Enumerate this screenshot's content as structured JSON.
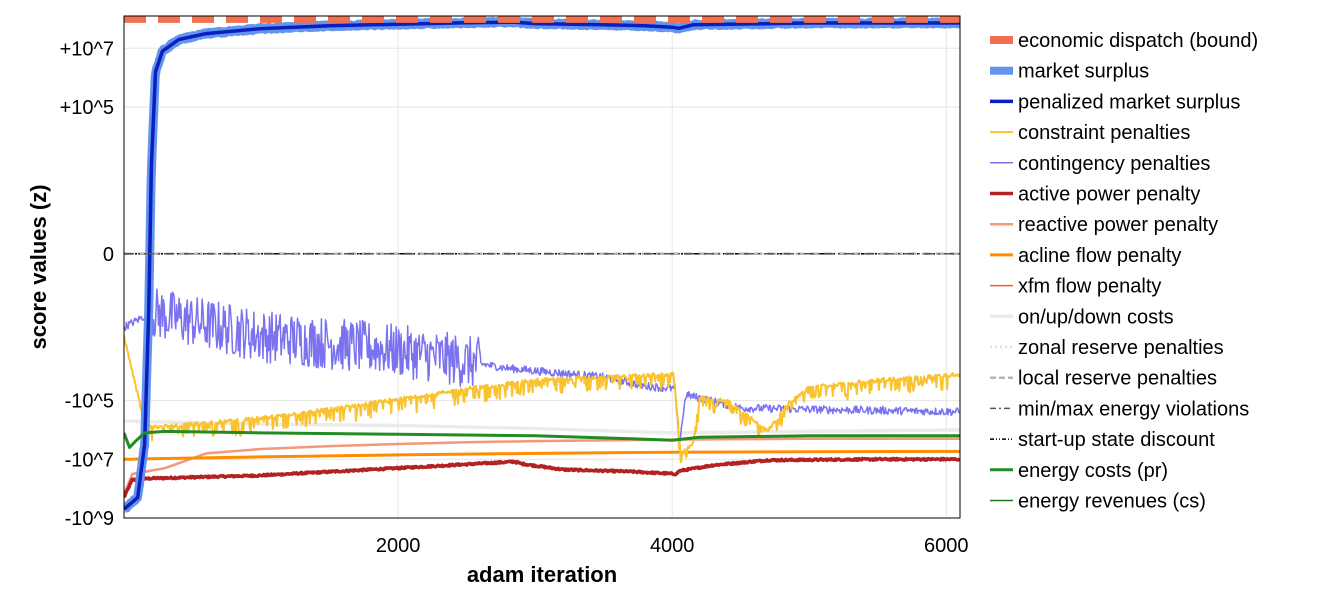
{
  "chart_data": {
    "type": "line",
    "title": "",
    "xlabel": "adam iteration",
    "ylabel": "score values (z)",
    "xlim": [
      0,
      6100
    ],
    "ylim_symlog": [
      -9,
      8.1
    ],
    "y_scale": "symlog",
    "grid": true,
    "legend_placement": "right, outside",
    "x_ticks": [
      {
        "value": 2000,
        "label": "2000"
      },
      {
        "value": 4000,
        "label": "4000"
      },
      {
        "value": 6000,
        "label": "6000"
      }
    ],
    "y_ticks": [
      {
        "value": 7,
        "label": "+10^7"
      },
      {
        "value": 5,
        "label": "+10^5"
      },
      {
        "value": 0,
        "label": "0"
      },
      {
        "value": -5,
        "label": "-10^5"
      },
      {
        "value": -7,
        "label": "-10^7"
      },
      {
        "value": -9,
        "label": "-10^9"
      }
    ],
    "series": [
      {
        "name": "economic dispatch (bound)",
        "color": "#f26f4f",
        "style": "dashed-thick",
        "width": 8,
        "points": [
          [
            0,
            8.0
          ],
          [
            6100,
            8.0
          ]
        ]
      },
      {
        "name": "market surplus",
        "color": "#6495ed",
        "style": "solid",
        "width": 9,
        "noise": 0.04,
        "points": [
          [
            0,
            -8.7
          ],
          [
            100,
            -8.3
          ],
          [
            150,
            -6.5
          ],
          [
            180,
            -2.0
          ],
          [
            200,
            3.0
          ],
          [
            230,
            6.2
          ],
          [
            280,
            6.9
          ],
          [
            400,
            7.3
          ],
          [
            600,
            7.5
          ],
          [
            1000,
            7.67
          ],
          [
            1500,
            7.77
          ],
          [
            2000,
            7.82
          ],
          [
            2500,
            7.87
          ],
          [
            2850,
            7.89
          ],
          [
            3000,
            7.84
          ],
          [
            3500,
            7.8
          ],
          [
            3800,
            7.77
          ],
          [
            4000,
            7.72
          ],
          [
            4050,
            7.68
          ],
          [
            4150,
            7.8
          ],
          [
            5000,
            7.86
          ],
          [
            6100,
            7.86
          ]
        ]
      },
      {
        "name": "penalized market surplus",
        "color": "#0a1fbf",
        "style": "solid",
        "width": 3.5,
        "points": [
          [
            0,
            -8.7
          ],
          [
            100,
            -8.3
          ],
          [
            150,
            -6.5
          ],
          [
            180,
            -2.0
          ],
          [
            200,
            3.0
          ],
          [
            230,
            6.2
          ],
          [
            280,
            6.9
          ],
          [
            400,
            7.3
          ],
          [
            600,
            7.5
          ],
          [
            1000,
            7.67
          ],
          [
            1500,
            7.77
          ],
          [
            2000,
            7.82
          ],
          [
            2500,
            7.87
          ],
          [
            2850,
            7.89
          ],
          [
            3000,
            7.84
          ],
          [
            3500,
            7.8
          ],
          [
            3800,
            7.77
          ],
          [
            4000,
            7.72
          ],
          [
            4050,
            7.68
          ],
          [
            4150,
            7.8
          ],
          [
            5000,
            7.86
          ],
          [
            6100,
            7.86
          ]
        ]
      },
      {
        "name": "constraint penalties",
        "color": "#f9c22e",
        "style": "solid",
        "width": 2,
        "noise": 0.06,
        "spikes": {
          "x0": 120,
          "x1": 6100,
          "every": 13,
          "depth": 0.5,
          "prob": 0.35
        },
        "points": [
          [
            0,
            -2.8
          ],
          [
            150,
            -5.8
          ],
          [
            250,
            -5.9
          ],
          [
            500,
            -5.8
          ],
          [
            1000,
            -5.6
          ],
          [
            1500,
            -5.3
          ],
          [
            2000,
            -4.95
          ],
          [
            2500,
            -4.6
          ],
          [
            3000,
            -4.3
          ],
          [
            3500,
            -4.2
          ],
          [
            4000,
            -4.1
          ],
          [
            4020,
            -4.1
          ],
          [
            4060,
            -6.8
          ],
          [
            4150,
            -6.5
          ],
          [
            4200,
            -4.9
          ],
          [
            4400,
            -5.0
          ],
          [
            4700,
            -6.0
          ],
          [
            4850,
            -5.1
          ],
          [
            5000,
            -4.55
          ],
          [
            5500,
            -4.3
          ],
          [
            6100,
            -4.1
          ]
        ]
      },
      {
        "name": "contingency penalties",
        "color": "#7b72f0",
        "style": "solid",
        "width": 1.5,
        "noise": 0.9,
        "noise_zone": [
          200,
          2600
        ],
        "points": [
          [
            0,
            -2.5
          ],
          [
            200,
            -2.0
          ],
          [
            1000,
            -2.8
          ],
          [
            2000,
            -3.3
          ],
          [
            2800,
            -3.9
          ],
          [
            3500,
            -4.2
          ],
          [
            3800,
            -4.5
          ],
          [
            4020,
            -4.6
          ],
          [
            4050,
            -6.5
          ],
          [
            4100,
            -4.8
          ],
          [
            4500,
            -5.25
          ],
          [
            5000,
            -5.3
          ],
          [
            6100,
            -5.38
          ]
        ]
      },
      {
        "name": "active power penalty",
        "color": "#b22222",
        "style": "solid",
        "width": 3.5,
        "noise": 0.03,
        "points": [
          [
            0,
            -8.3
          ],
          [
            60,
            -7.7
          ],
          [
            200,
            -7.65
          ],
          [
            1000,
            -7.55
          ],
          [
            2000,
            -7.3
          ],
          [
            2850,
            -7.08
          ],
          [
            2900,
            -7.15
          ],
          [
            3200,
            -7.35
          ],
          [
            3700,
            -7.42
          ],
          [
            4030,
            -7.5
          ],
          [
            4050,
            -7.4
          ],
          [
            4300,
            -7.2
          ],
          [
            4700,
            -7.03
          ],
          [
            5500,
            -7.0
          ],
          [
            6100,
            -7.0
          ]
        ]
      },
      {
        "name": "reactive power penalty",
        "color": "#f4977a",
        "style": "solid",
        "width": 2.5,
        "points": [
          [
            0,
            -8.2
          ],
          [
            60,
            -7.5
          ],
          [
            300,
            -7.3
          ],
          [
            600,
            -6.8
          ],
          [
            1000,
            -6.65
          ],
          [
            1500,
            -6.55
          ],
          [
            2000,
            -6.48
          ],
          [
            2500,
            -6.42
          ],
          [
            3000,
            -6.38
          ],
          [
            4000,
            -6.33
          ],
          [
            5000,
            -6.3
          ],
          [
            6100,
            -6.3
          ]
        ]
      },
      {
        "name": "acline flow penalty",
        "color": "#ff8c00",
        "style": "solid",
        "width": 3,
        "points": [
          [
            0,
            -7.0
          ],
          [
            200,
            -6.98
          ],
          [
            1000,
            -6.92
          ],
          [
            2000,
            -6.85
          ],
          [
            3000,
            -6.8
          ],
          [
            4000,
            -6.76
          ],
          [
            5000,
            -6.74
          ],
          [
            6100,
            -6.73
          ]
        ]
      },
      {
        "name": "xfm flow penalty",
        "color": "#ee5a24",
        "style": "solid",
        "width": 1.5,
        "points": [
          [
            0,
            -7.0
          ],
          [
            200,
            -6.98
          ],
          [
            1000,
            -6.92
          ],
          [
            2000,
            -6.85
          ],
          [
            3000,
            -6.8
          ],
          [
            4000,
            -6.76
          ],
          [
            5000,
            -6.74
          ],
          [
            6100,
            -6.73
          ]
        ]
      },
      {
        "name": "on/up/down costs",
        "color": "#ebebeb",
        "style": "solid",
        "width": 3.5,
        "points": [
          [
            0,
            -5.7
          ],
          [
            500,
            -5.75
          ],
          [
            1000,
            -5.8
          ],
          [
            2000,
            -5.85
          ],
          [
            3000,
            -5.95
          ],
          [
            4000,
            -6.1
          ],
          [
            5000,
            -6.05
          ],
          [
            6100,
            -6.0
          ]
        ]
      },
      {
        "name": "zonal reserve penalties",
        "color": "#e0e0e0",
        "style": "dotted",
        "width": 2.5,
        "points": [
          [
            0,
            0
          ],
          [
            6100,
            0
          ]
        ]
      },
      {
        "name": "local reserve penalties",
        "color": "#b5b5b5",
        "style": "dashed",
        "width": 2.5,
        "points": [
          [
            0,
            0
          ],
          [
            6100,
            0
          ]
        ]
      },
      {
        "name": "min/max energy violations",
        "color": "#555555",
        "style": "dashdot",
        "width": 1.5,
        "points": [
          [
            0,
            0
          ],
          [
            6100,
            0
          ]
        ]
      },
      {
        "name": "start-up state discount",
        "color": "#000000",
        "style": "dashdotdot",
        "width": 1.5,
        "points": [
          [
            0,
            0
          ],
          [
            6100,
            0
          ]
        ]
      },
      {
        "name": "energy costs (pr)",
        "color": "#228b22",
        "style": "solid",
        "width": 3,
        "points": [
          [
            0,
            -6.1
          ],
          [
            40,
            -6.6
          ],
          [
            80,
            -6.4
          ],
          [
            150,
            -6.1
          ],
          [
            300,
            -6.05
          ],
          [
            1000,
            -6.1
          ],
          [
            2000,
            -6.15
          ],
          [
            3000,
            -6.2
          ],
          [
            3700,
            -6.3
          ],
          [
            4000,
            -6.35
          ],
          [
            4200,
            -6.25
          ],
          [
            5000,
            -6.2
          ],
          [
            6100,
            -6.2
          ]
        ]
      },
      {
        "name": "energy revenues (cs)",
        "color": "#1a7a1a",
        "style": "solid",
        "width": 1.5,
        "points": [
          [
            0,
            8.1
          ],
          [
            6100,
            8.1
          ]
        ]
      }
    ]
  }
}
